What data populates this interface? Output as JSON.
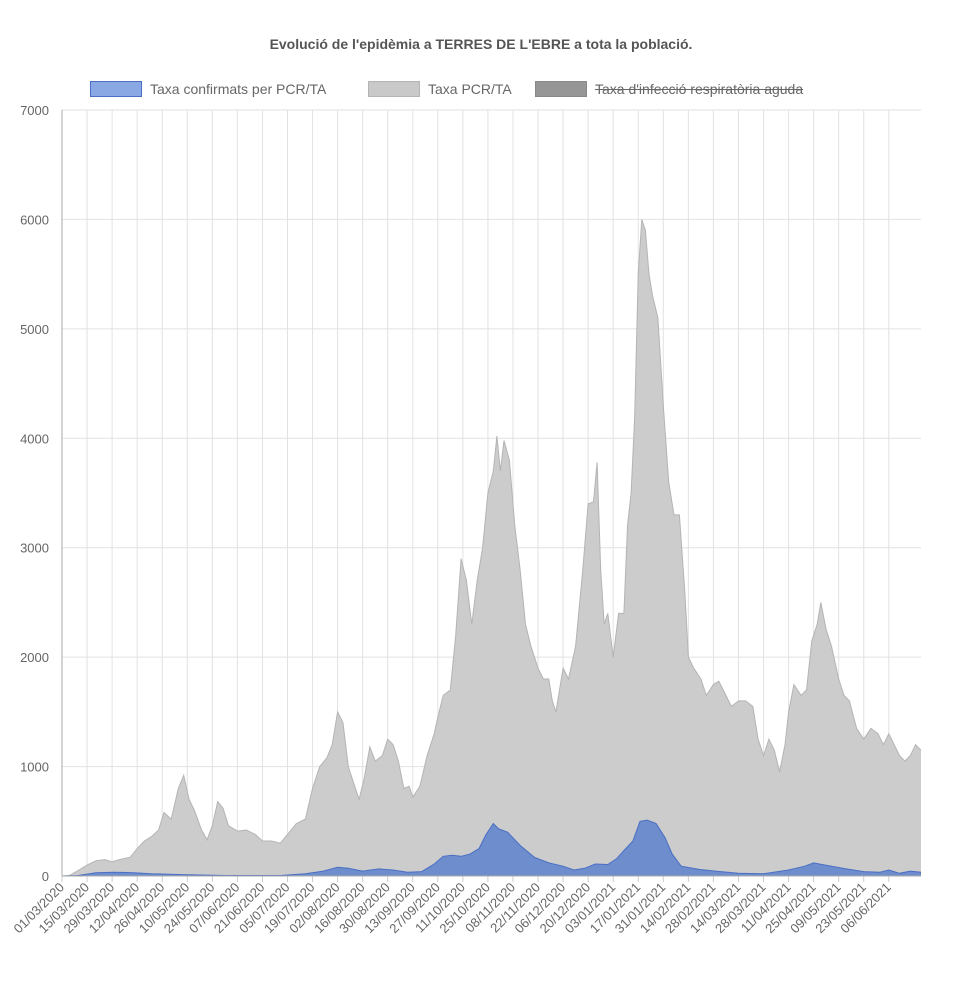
{
  "chart_data": {
    "type": "area",
    "title": "Evolució de l'epidèmia a TERRES DE L'EBRE a tota la població.",
    "xlabel": "",
    "ylabel": "",
    "ylim": [
      0,
      7000
    ],
    "yticks": [
      0,
      1000,
      2000,
      3000,
      4000,
      5000,
      6000,
      7000
    ],
    "xlim": [
      "01/03/2020",
      "24/06/2021"
    ],
    "x_tick_labels": [
      "01/03/2020",
      "15/03/2020",
      "29/03/2020",
      "12/04/2020",
      "26/04/2020",
      "10/05/2020",
      "24/05/2020",
      "07/06/2020",
      "21/06/2020",
      "05/07/2020",
      "19/07/2020",
      "02/08/2020",
      "16/08/2020",
      "30/08/2020",
      "13/09/2020",
      "27/09/2020",
      "11/10/2020",
      "25/10/2020",
      "08/11/2020",
      "22/11/2020",
      "06/12/2020",
      "20/12/2020",
      "03/01/2021",
      "17/01/2021",
      "31/01/2021",
      "14/02/2021",
      "28/02/2021",
      "14/03/2021",
      "28/03/2021",
      "11/04/2021",
      "25/04/2021",
      "09/05/2021",
      "23/05/2021",
      "06/06/2021"
    ],
    "grid": true,
    "legend": "top",
    "series": [
      {
        "name": "Taxa confirmats per PCR/TA",
        "color": "#7090d8",
        "fill": "#6688cc",
        "border": "#4a6fc4",
        "hidden": false,
        "points": [
          [
            "01/03/2020",
            0
          ],
          [
            "10/03/2020",
            5
          ],
          [
            "20/03/2020",
            30
          ],
          [
            "30/03/2020",
            35
          ],
          [
            "10/04/2020",
            30
          ],
          [
            "20/04/2020",
            20
          ],
          [
            "10/05/2020",
            12
          ],
          [
            "01/06/2020",
            5
          ],
          [
            "01/07/2020",
            5
          ],
          [
            "15/07/2020",
            20
          ],
          [
            "25/07/2020",
            45
          ],
          [
            "02/08/2020",
            80
          ],
          [
            "08/08/2020",
            70
          ],
          [
            "16/08/2020",
            45
          ],
          [
            "25/08/2020",
            65
          ],
          [
            "02/09/2020",
            55
          ],
          [
            "10/09/2020",
            35
          ],
          [
            "18/09/2020",
            40
          ],
          [
            "25/09/2020",
            110
          ],
          [
            "30/09/2020",
            180
          ],
          [
            "05/10/2020",
            190
          ],
          [
            "10/10/2020",
            180
          ],
          [
            "15/10/2020",
            200
          ],
          [
            "20/10/2020",
            250
          ],
          [
            "24/10/2020",
            380
          ],
          [
            "28/10/2020",
            480
          ],
          [
            "31/10/2020",
            430
          ],
          [
            "05/11/2020",
            400
          ],
          [
            "12/11/2020",
            280
          ],
          [
            "20/11/2020",
            170
          ],
          [
            "28/11/2020",
            120
          ],
          [
            "06/12/2020",
            90
          ],
          [
            "12/12/2020",
            55
          ],
          [
            "18/12/2020",
            70
          ],
          [
            "24/12/2020",
            110
          ],
          [
            "31/12/2020",
            105
          ],
          [
            "05/01/2021",
            160
          ],
          [
            "10/01/2021",
            250
          ],
          [
            "14/01/2021",
            320
          ],
          [
            "18/01/2021",
            500
          ],
          [
            "22/01/2021",
            510
          ],
          [
            "27/01/2021",
            480
          ],
          [
            "01/02/2021",
            350
          ],
          [
            "05/02/2021",
            200
          ],
          [
            "10/02/2021",
            90
          ],
          [
            "20/02/2021",
            60
          ],
          [
            "01/03/2021",
            45
          ],
          [
            "14/03/2021",
            25
          ],
          [
            "28/03/2021",
            20
          ],
          [
            "11/04/2021",
            55
          ],
          [
            "20/04/2021",
            90
          ],
          [
            "25/04/2021",
            120
          ],
          [
            "05/05/2021",
            90
          ],
          [
            "15/05/2021",
            60
          ],
          [
            "23/05/2021",
            40
          ],
          [
            "01/06/2021",
            35
          ],
          [
            "06/06/2021",
            55
          ],
          [
            "12/06/2021",
            25
          ],
          [
            "18/06/2021",
            45
          ],
          [
            "24/06/2021",
            35
          ]
        ]
      },
      {
        "name": "Taxa PCR/TA",
        "color": "#c9c9c9",
        "fill": "#c9c9c9",
        "border": "#b4b4b4",
        "hidden": false,
        "points": [
          [
            "01/03/2020",
            0
          ],
          [
            "05/03/2020",
            5
          ],
          [
            "10/03/2020",
            50
          ],
          [
            "15/03/2020",
            100
          ],
          [
            "20/03/2020",
            140
          ],
          [
            "25/03/2020",
            150
          ],
          [
            "29/03/2020",
            130
          ],
          [
            "02/04/2020",
            150
          ],
          [
            "08/04/2020",
            170
          ],
          [
            "12/04/2020",
            250
          ],
          [
            "16/04/2020",
            320
          ],
          [
            "20/04/2020",
            360
          ],
          [
            "24/04/2020",
            420
          ],
          [
            "27/04/2020",
            580
          ],
          [
            "01/05/2020",
            520
          ],
          [
            "05/05/2020",
            800
          ],
          [
            "08/05/2020",
            920
          ],
          [
            "11/05/2020",
            700
          ],
          [
            "14/05/2020",
            600
          ],
          [
            "18/05/2020",
            420
          ],
          [
            "21/05/2020",
            330
          ],
          [
            "24/05/2020",
            460
          ],
          [
            "27/05/2020",
            680
          ],
          [
            "30/05/2020",
            620
          ],
          [
            "02/06/2020",
            460
          ],
          [
            "07/06/2020",
            410
          ],
          [
            "12/06/2020",
            420
          ],
          [
            "17/06/2020",
            380
          ],
          [
            "21/06/2020",
            320
          ],
          [
            "26/06/2020",
            320
          ],
          [
            "01/07/2020",
            300
          ],
          [
            "05/07/2020",
            380
          ],
          [
            "10/07/2020",
            480
          ],
          [
            "15/07/2020",
            520
          ],
          [
            "19/07/2020",
            800
          ],
          [
            "23/07/2020",
            1000
          ],
          [
            "27/07/2020",
            1080
          ],
          [
            "30/07/2020",
            1200
          ],
          [
            "02/08/2020",
            1500
          ],
          [
            "05/08/2020",
            1400
          ],
          [
            "08/08/2020",
            1000
          ],
          [
            "12/08/2020",
            800
          ],
          [
            "14/08/2020",
            700
          ],
          [
            "17/08/2020",
            900
          ],
          [
            "20/08/2020",
            1180
          ],
          [
            "23/08/2020",
            1050
          ],
          [
            "27/08/2020",
            1100
          ],
          [
            "30/08/2020",
            1250
          ],
          [
            "02/09/2020",
            1200
          ],
          [
            "05/09/2020",
            1050
          ],
          [
            "08/09/2020",
            800
          ],
          [
            "11/09/2020",
            820
          ],
          [
            "13/09/2020",
            720
          ],
          [
            "17/09/2020",
            820
          ],
          [
            "21/09/2020",
            1100
          ],
          [
            "25/09/2020",
            1300
          ],
          [
            "27/09/2020",
            1450
          ],
          [
            "30/09/2020",
            1650
          ],
          [
            "04/10/2020",
            1700
          ],
          [
            "07/10/2020",
            2200
          ],
          [
            "10/10/2020",
            2900
          ],
          [
            "13/10/2020",
            2700
          ],
          [
            "16/10/2020",
            2300
          ],
          [
            "19/10/2020",
            2700
          ],
          [
            "22/10/2020",
            3000
          ],
          [
            "25/10/2020",
            3500
          ],
          [
            "28/10/2020",
            3700
          ],
          [
            "30/10/2020",
            4020
          ],
          [
            "01/11/2020",
            3700
          ],
          [
            "03/11/2020",
            3980
          ],
          [
            "06/11/2020",
            3800
          ],
          [
            "09/11/2020",
            3200
          ],
          [
            "12/11/2020",
            2800
          ],
          [
            "15/11/2020",
            2300
          ],
          [
            "18/11/2020",
            2100
          ],
          [
            "22/11/2020",
            1900
          ],
          [
            "25/11/2020",
            1800
          ],
          [
            "28/11/2020",
            1800
          ],
          [
            "30/11/2020",
            1600
          ],
          [
            "02/12/2020",
            1500
          ],
          [
            "04/12/2020",
            1700
          ],
          [
            "06/12/2020",
            1900
          ],
          [
            "09/12/2020",
            1800
          ],
          [
            "13/12/2020",
            2100
          ],
          [
            "17/12/2020",
            2800
          ],
          [
            "20/12/2020",
            3400
          ],
          [
            "23/12/2020",
            3420
          ],
          [
            "25/12/2020",
            3780
          ],
          [
            "27/12/2020",
            2800
          ],
          [
            "29/12/2020",
            2300
          ],
          [
            "31/12/2020",
            2400
          ],
          [
            "03/01/2021",
            2000
          ],
          [
            "06/01/2021",
            2400
          ],
          [
            "09/01/2021",
            2400
          ],
          [
            "11/01/2021",
            3200
          ],
          [
            "13/01/2021",
            3500
          ],
          [
            "15/01/2021",
            4200
          ],
          [
            "17/01/2021",
            5500
          ],
          [
            "19/01/2021",
            6000
          ],
          [
            "21/01/2021",
            5900
          ],
          [
            "23/01/2021",
            5500
          ],
          [
            "25/01/2021",
            5300
          ],
          [
            "28/01/2021",
            5100
          ],
          [
            "31/01/2021",
            4300
          ],
          [
            "03/02/2021",
            3600
          ],
          [
            "06/02/2021",
            3300
          ],
          [
            "09/02/2021",
            3300
          ],
          [
            "12/02/2021",
            2600
          ],
          [
            "14/02/2021",
            2000
          ],
          [
            "17/02/2021",
            1900
          ],
          [
            "21/02/2021",
            1800
          ],
          [
            "24/02/2021",
            1650
          ],
          [
            "28/02/2021",
            1750
          ],
          [
            "03/03/2021",
            1780
          ],
          [
            "07/03/2021",
            1650
          ],
          [
            "10/03/2021",
            1550
          ],
          [
            "14/03/2021",
            1600
          ],
          [
            "18/03/2021",
            1600
          ],
          [
            "22/03/2021",
            1550
          ],
          [
            "25/03/2021",
            1250
          ],
          [
            "28/03/2021",
            1100
          ],
          [
            "31/03/2021",
            1250
          ],
          [
            "03/04/2021",
            1150
          ],
          [
            "06/04/2021",
            950
          ],
          [
            "09/04/2021",
            1200
          ],
          [
            "11/04/2021",
            1500
          ],
          [
            "14/04/2021",
            1750
          ],
          [
            "18/04/2021",
            1650
          ],
          [
            "21/04/2021",
            1700
          ],
          [
            "24/04/2021",
            2150
          ],
          [
            "27/04/2021",
            2300
          ],
          [
            "29/04/2021",
            2500
          ],
          [
            "02/05/2021",
            2250
          ],
          [
            "05/05/2021",
            2100
          ],
          [
            "09/05/2021",
            1800
          ],
          [
            "12/05/2021",
            1650
          ],
          [
            "15/05/2021",
            1600
          ],
          [
            "19/05/2021",
            1350
          ],
          [
            "23/05/2021",
            1250
          ],
          [
            "27/05/2021",
            1350
          ],
          [
            "31/05/2021",
            1300
          ],
          [
            "03/06/2021",
            1200
          ],
          [
            "06/06/2021",
            1300
          ],
          [
            "09/06/2021",
            1200
          ],
          [
            "12/06/2021",
            1100
          ],
          [
            "15/06/2021",
            1050
          ],
          [
            "18/06/2021",
            1100
          ],
          [
            "21/06/2021",
            1200
          ],
          [
            "24/06/2021",
            1150
          ]
        ]
      },
      {
        "name": "Taxa d'infecció respiratòria aguda",
        "color": "#969696",
        "fill": "#969696",
        "border": "#888888",
        "hidden": true,
        "points": []
      }
    ]
  }
}
